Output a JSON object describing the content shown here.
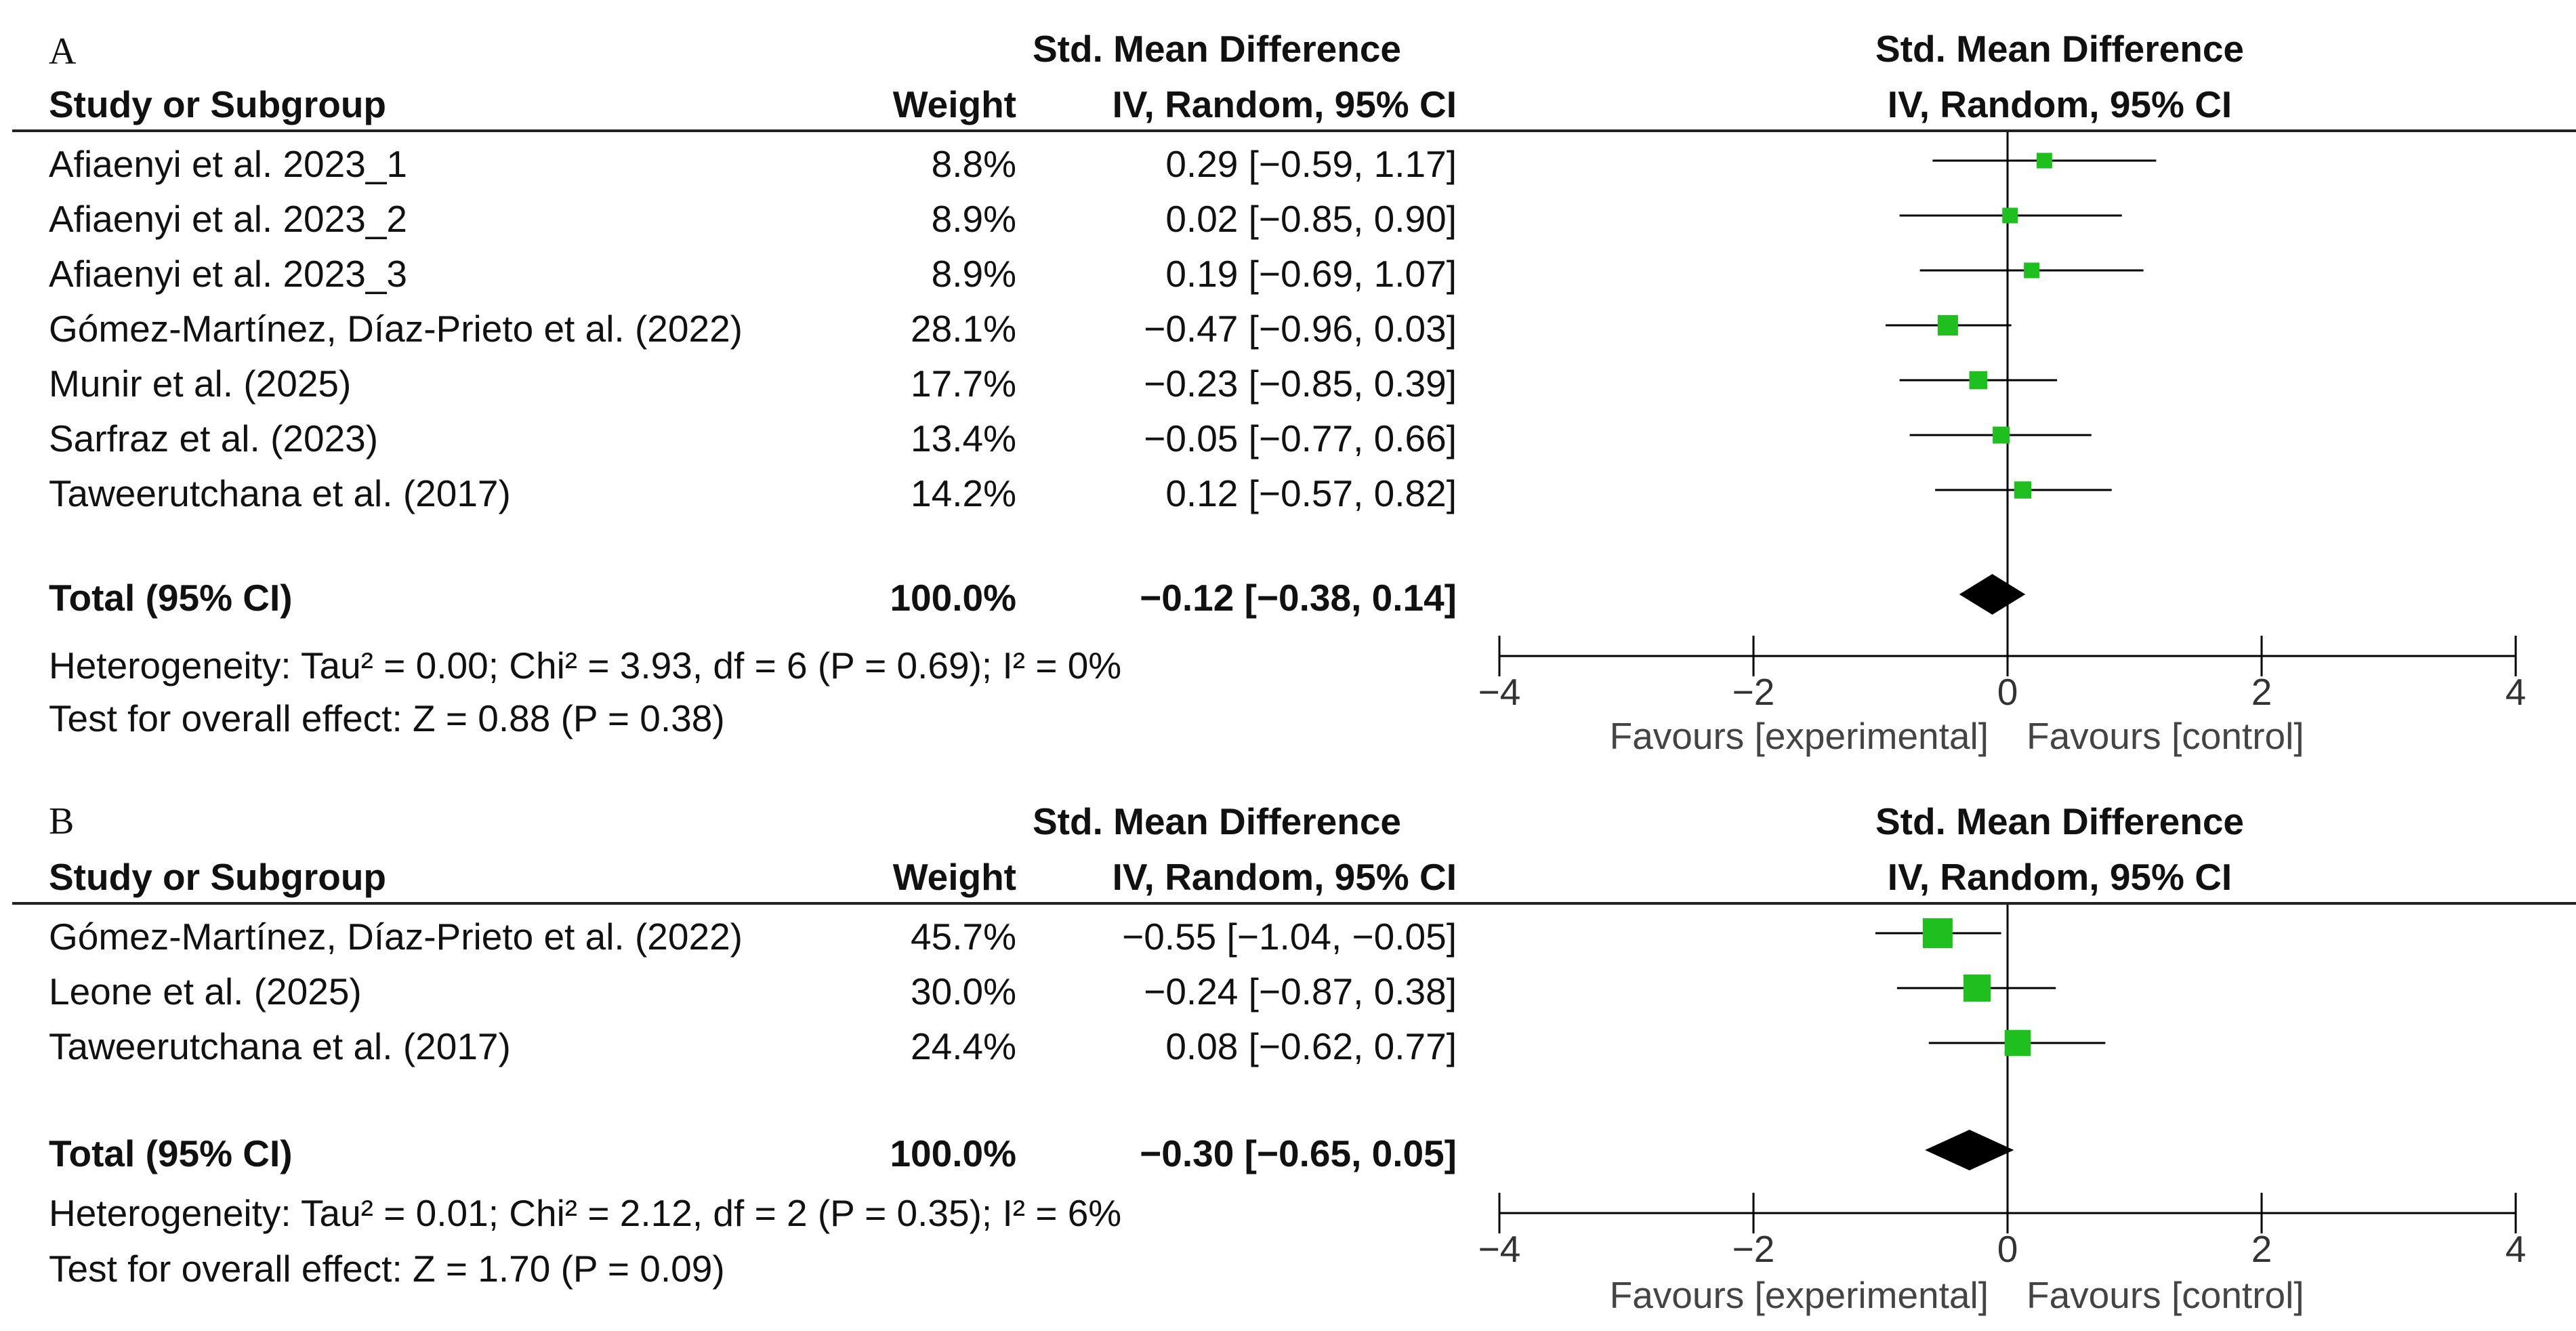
{
  "chart_data": [
    {
      "type": "forest",
      "panel_label": "A",
      "headers": {
        "study": "Study or Subgroup",
        "weight": "Weight",
        "effect_line1": "Std. Mean Difference",
        "effect_line2": "IV, Random, 95% CI",
        "plot_line1": "Std. Mean Difference",
        "plot_line2": "IV, Random, 95% CI"
      },
      "studies": [
        {
          "name": "Afiaenyi et al. 2023_1",
          "weight": "8.8%",
          "ci_text": "0.29 [−0.59, 1.17]",
          "est": 0.29,
          "lo": -0.59,
          "hi": 1.17,
          "w": 8.8
        },
        {
          "name": "Afiaenyi et al. 2023_2",
          "weight": "8.9%",
          "ci_text": "0.02 [−0.85, 0.90]",
          "est": 0.02,
          "lo": -0.85,
          "hi": 0.9,
          "w": 8.9
        },
        {
          "name": "Afiaenyi et al. 2023_3",
          "weight": "8.9%",
          "ci_text": "0.19 [−0.69, 1.07]",
          "est": 0.19,
          "lo": -0.69,
          "hi": 1.07,
          "w": 8.9
        },
        {
          "name": "Gómez-Martínez, Díaz-Prieto et al. (2022)",
          "weight": "28.1%",
          "ci_text": "−0.47 [−0.96, 0.03]",
          "est": -0.47,
          "lo": -0.96,
          "hi": 0.03,
          "w": 28.1
        },
        {
          "name": "Munir et al. (2025)",
          "weight": "17.7%",
          "ci_text": "−0.23 [−0.85, 0.39]",
          "est": -0.23,
          "lo": -0.85,
          "hi": 0.39,
          "w": 17.7
        },
        {
          "name": "Sarfraz et al. (2023)",
          "weight": "13.4%",
          "ci_text": "−0.05 [−0.77, 0.66]",
          "est": -0.05,
          "lo": -0.77,
          "hi": 0.66,
          "w": 13.4
        },
        {
          "name": "Taweerutchana et al. (2017)",
          "weight": "14.2%",
          "ci_text": "0.12 [−0.57, 0.82]",
          "est": 0.12,
          "lo": -0.57,
          "hi": 0.82,
          "w": 14.2
        }
      ],
      "total": {
        "label": "Total (95% CI)",
        "weight": "100.0%",
        "ci_text": "−0.12 [−0.38, 0.14]",
        "est": -0.12,
        "lo": -0.38,
        "hi": 0.14
      },
      "heterogeneity": "Heterogeneity: Tau² = 0.00; Chi² = 3.93, df = 6 (P = 0.69); I² = 0%",
      "overall_effect": "Test for overall effect: Z = 0.88 (P = 0.38)",
      "axis": {
        "xlim": [
          -4,
          4
        ],
        "ticks": [
          -4,
          -2,
          0,
          2,
          4
        ],
        "tick_labels": [
          "−4",
          "−2",
          "0",
          "2",
          "4"
        ]
      },
      "favours_left": "Favours [experimental]",
      "favours_right": "Favours [control]"
    },
    {
      "type": "forest",
      "panel_label": "B",
      "headers": {
        "study": "Study or Subgroup",
        "weight": "Weight",
        "effect_line1": "Std. Mean Difference",
        "effect_line2": "IV, Random, 95% CI",
        "plot_line1": "Std. Mean Difference",
        "plot_line2": "IV, Random, 95% CI"
      },
      "studies": [
        {
          "name": "Gómez-Martínez, Díaz-Prieto et al. (2022)",
          "weight": "45.7%",
          "ci_text": "−0.55 [−1.04, −0.05]",
          "est": -0.55,
          "lo": -1.04,
          "hi": -0.05,
          "w": 45.7
        },
        {
          "name": "Leone et al. (2025)",
          "weight": "30.0%",
          "ci_text": "−0.24 [−0.87, 0.38]",
          "est": -0.24,
          "lo": -0.87,
          "hi": 0.38,
          "w": 30.0
        },
        {
          "name": "Taweerutchana et al. (2017)",
          "weight": "24.4%",
          "ci_text": "0.08 [−0.62, 0.77]",
          "est": 0.08,
          "lo": -0.62,
          "hi": 0.77,
          "w": 24.4
        }
      ],
      "total": {
        "label": "Total (95% CI)",
        "weight": "100.0%",
        "ci_text": "−0.30 [−0.65, 0.05]",
        "est": -0.3,
        "lo": -0.65,
        "hi": 0.05
      },
      "heterogeneity": "Heterogeneity: Tau² = 0.01; Chi² = 2.12, df = 2 (P = 0.35); I² = 6%",
      "overall_effect": "Test for overall effect: Z = 1.70 (P = 0.09)",
      "axis": {
        "xlim": [
          -4,
          4
        ],
        "ticks": [
          -4,
          -2,
          0,
          2,
          4
        ],
        "tick_labels": [
          "−4",
          "−2",
          "0",
          "2",
          "4"
        ]
      },
      "favours_left": "Favours [experimental]",
      "favours_right": "Favours [control]"
    }
  ],
  "colors": {
    "point": "#1fbf1f",
    "diamond": "#000000",
    "line": "#000000",
    "text": "#111111"
  }
}
